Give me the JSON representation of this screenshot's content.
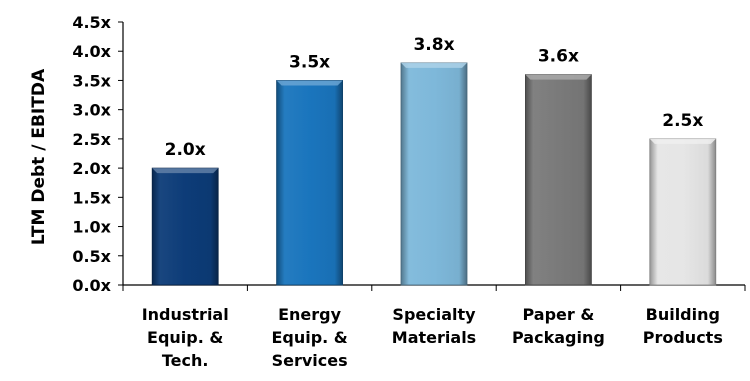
{
  "chart_data": {
    "type": "bar",
    "title": "",
    "xlabel": "",
    "ylabel": "LTM Debt / EBITDA",
    "ylim": [
      0,
      4.5
    ],
    "y_ticks": [
      "0.0x",
      "0.5x",
      "1.0x",
      "1.5x",
      "2.0x",
      "2.5x",
      "3.0x",
      "3.5x",
      "4.0x",
      "4.5x"
    ],
    "grid": false,
    "legend": "none",
    "categories": [
      [
        "Industrial",
        "Equip. &",
        "Tech."
      ],
      [
        "Energy",
        "Equip. &",
        "Services"
      ],
      [
        "Specialty",
        "Materials"
      ],
      [
        "Paper &",
        "Packaging"
      ],
      [
        "Building",
        "Products"
      ]
    ],
    "values": [
      2.0,
      3.5,
      3.8,
      3.6,
      2.5
    ],
    "value_labels": [
      "2.0x",
      "3.5x",
      "3.8x",
      "3.6x",
      "2.5x"
    ],
    "bar_colors": [
      "#0d3c78",
      "#1a75bd",
      "#7eb8da",
      "#7a7a7a",
      "#e6e6e6"
    ]
  }
}
